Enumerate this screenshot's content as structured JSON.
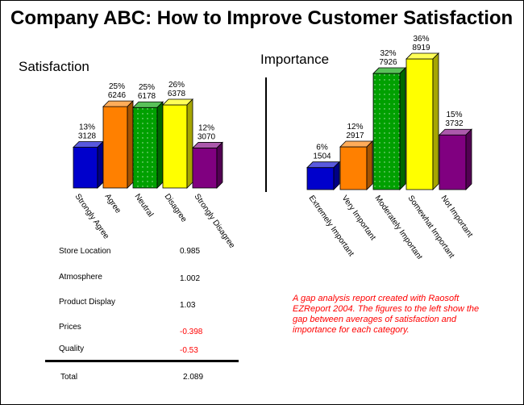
{
  "title": "Company ABC: How to Improve Customer Satisfaction",
  "chart_data": [
    {
      "type": "bar",
      "title": "Satisfaction",
      "categories": [
        "Strongly Agree",
        "Agree",
        "Neutral",
        "Disagree",
        "Strongly Disagree"
      ],
      "values": [
        3128,
        6246,
        6178,
        6378,
        3070
      ],
      "percent_labels": [
        "13%",
        "25%",
        "25%",
        "26%",
        "12%"
      ],
      "count_labels": [
        "3128",
        "6246",
        "6178",
        "6378",
        "3070"
      ],
      "colors": [
        "#0000cc",
        "#ff8000",
        "#00a000",
        "#ffff00",
        "#800080"
      ],
      "ylim": [
        0,
        6378
      ]
    },
    {
      "type": "bar",
      "title": "Importance",
      "categories": [
        "Extremely Important",
        "Very Important",
        "Moderately Important",
        "Somewhat Important",
        "Not Important"
      ],
      "values": [
        1504,
        2917,
        7926,
        8919,
        3732
      ],
      "percent_labels": [
        "6%",
        "12%",
        "32%",
        "36%",
        "15%"
      ],
      "count_labels": [
        "1504",
        "2917",
        "7926",
        "8919",
        "3732"
      ],
      "colors": [
        "#0000cc",
        "#ff8000",
        "#00a000",
        "#ffff00",
        "#800080"
      ],
      "ylim": [
        0,
        8919
      ]
    }
  ],
  "gap_table": {
    "rows": [
      {
        "label": "Store Location",
        "value": "0.985",
        "negative": false
      },
      {
        "label": "Atmosphere",
        "value": "1.002",
        "negative": false
      },
      {
        "label": "Product Display",
        "value": "1.03",
        "negative": false
      },
      {
        "label": "Prices",
        "value": "-0.398",
        "negative": true
      },
      {
        "label": "Quality",
        "value": "-0.53",
        "negative": true
      }
    ],
    "total": {
      "label": "Total",
      "value": "2.089"
    }
  },
  "note": "A gap analysis report created with Raosoft EZReport 2004.  The figures to the left show the gap between averages of satisfaction and importance for each category.",
  "colors": {
    "negative_text": "#ff0000",
    "note_text": "#ff0000"
  }
}
